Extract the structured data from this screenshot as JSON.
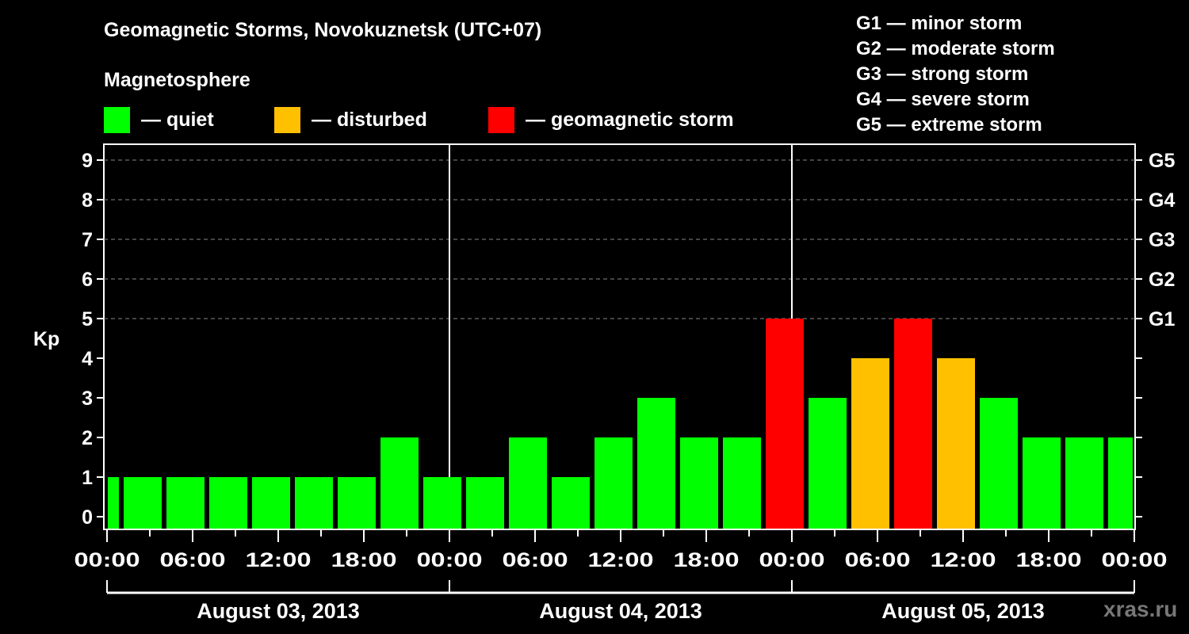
{
  "header": {
    "title": "Geomagnetic Storms, Novokuznetsk (UTC+07)",
    "subtitle": "Magnetosphere"
  },
  "legend": [
    {
      "label": "— quiet",
      "color": "#00ff00"
    },
    {
      "label": "— disturbed",
      "color": "#ffc000"
    },
    {
      "label": "— geomagnetic storm",
      "color": "#ff0000"
    }
  ],
  "g_scale": [
    "G1 — minor storm",
    "G2 — moderate storm",
    "G3 — strong storm",
    "G4 — severe storm",
    "G5 — extreme storm"
  ],
  "watermark": "xras.ru",
  "colors": {
    "quiet": "#00ff00",
    "disturbed": "#ffc000",
    "storm": "#ff0000",
    "grid": "#888888",
    "axis": "#ffffff"
  },
  "chart_data": {
    "type": "bar",
    "title": "Geomagnetic Storms, Novokuznetsk (UTC+07)",
    "ylabel": "Kp",
    "xlabel": "",
    "ylim": [
      0,
      9
    ],
    "yticks": [
      0,
      1,
      2,
      3,
      4,
      5,
      6,
      7,
      8,
      9
    ],
    "right_axis_labels": [
      {
        "kp": 5,
        "label": "G1"
      },
      {
        "kp": 6,
        "label": "G2"
      },
      {
        "kp": 7,
        "label": "G3"
      },
      {
        "kp": 8,
        "label": "G4"
      },
      {
        "kp": 9,
        "label": "G5"
      }
    ],
    "grid": "dashed horizontal at Kp 5-9",
    "xtick_labels": [
      "00:00",
      "06:00",
      "12:00",
      "18:00",
      "00:00",
      "06:00",
      "12:00",
      "18:00",
      "00:00",
      "06:00",
      "12:00",
      "18:00",
      "00:00"
    ],
    "days": [
      "August 03, 2013",
      "August 04, 2013",
      "August 05, 2013"
    ],
    "bin_hours": 3,
    "bins": [
      {
        "start": "Aug 03 00:00",
        "end": "Aug 03 01:00",
        "kp": 1,
        "status": "quiet"
      },
      {
        "start": "Aug 03 01:00",
        "kp": 1,
        "status": "quiet"
      },
      {
        "start": "Aug 03 04:00",
        "kp": 1,
        "status": "quiet"
      },
      {
        "start": "Aug 03 07:00",
        "kp": 1,
        "status": "quiet"
      },
      {
        "start": "Aug 03 10:00",
        "kp": 1,
        "status": "quiet"
      },
      {
        "start": "Aug 03 13:00",
        "kp": 1,
        "status": "quiet"
      },
      {
        "start": "Aug 03 16:00",
        "kp": 1,
        "status": "quiet"
      },
      {
        "start": "Aug 03 19:00",
        "kp": 2,
        "status": "quiet"
      },
      {
        "start": "Aug 03 22:00",
        "kp": 1,
        "status": "quiet"
      },
      {
        "start": "Aug 04 01:00",
        "kp": 1,
        "status": "quiet"
      },
      {
        "start": "Aug 04 04:00",
        "kp": 2,
        "status": "quiet"
      },
      {
        "start": "Aug 04 07:00",
        "kp": 1,
        "status": "quiet"
      },
      {
        "start": "Aug 04 10:00",
        "kp": 2,
        "status": "quiet"
      },
      {
        "start": "Aug 04 13:00",
        "kp": 3,
        "status": "quiet"
      },
      {
        "start": "Aug 04 16:00",
        "kp": 2,
        "status": "quiet"
      },
      {
        "start": "Aug 04 19:00",
        "kp": 2,
        "status": "quiet"
      },
      {
        "start": "Aug 04 22:00",
        "kp": 5,
        "status": "storm"
      },
      {
        "start": "Aug 05 01:00",
        "kp": 3,
        "status": "quiet"
      },
      {
        "start": "Aug 05 04:00",
        "kp": 4,
        "status": "disturbed"
      },
      {
        "start": "Aug 05 07:00",
        "kp": 5,
        "status": "storm"
      },
      {
        "start": "Aug 05 10:00",
        "kp": 4,
        "status": "disturbed"
      },
      {
        "start": "Aug 05 13:00",
        "kp": 3,
        "status": "quiet"
      },
      {
        "start": "Aug 05 16:00",
        "kp": 2,
        "status": "quiet"
      },
      {
        "start": "Aug 05 19:00",
        "kp": 2,
        "status": "quiet"
      },
      {
        "start": "Aug 05 22:00",
        "end": "Aug 06 00:00",
        "kp": 2,
        "status": "quiet"
      }
    ]
  }
}
